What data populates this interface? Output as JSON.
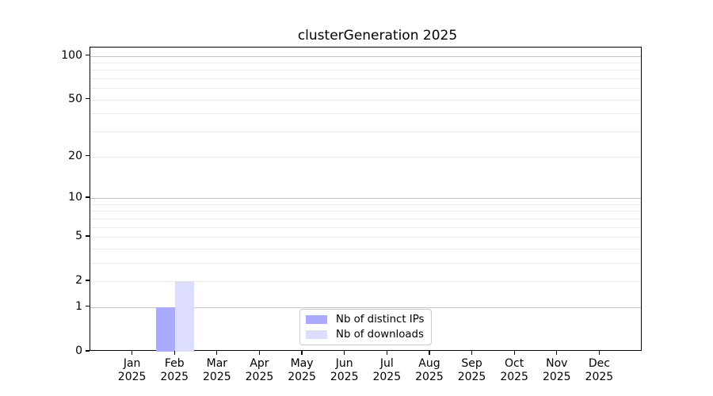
{
  "chart_data": {
    "type": "bar",
    "title": "clusterGeneration 2025",
    "x_year": "2025",
    "x_categories": [
      "Jan",
      "Feb",
      "Mar",
      "Apr",
      "May",
      "Jun",
      "Jul",
      "Aug",
      "Sep",
      "Oct",
      "Nov",
      "Dec"
    ],
    "series": [
      {
        "name": "Nb of distinct IPs",
        "color": "#aaaaff",
        "values": [
          0,
          1,
          0,
          0,
          0,
          0,
          0,
          0,
          0,
          0,
          0,
          0
        ]
      },
      {
        "name": "Nb of downloads",
        "color": "#ddddff",
        "values": [
          0,
          2,
          0,
          0,
          0,
          0,
          0,
          0,
          0,
          0,
          0,
          0
        ]
      }
    ],
    "y_axis": {
      "scale": "log10(1+x)",
      "range": [
        0,
        115
      ],
      "tick_values": [
        0,
        1,
        2,
        5,
        10,
        20,
        50,
        100
      ],
      "tick_labels": [
        "0",
        "1",
        "2",
        "5",
        "10",
        "20",
        "50",
        "100"
      ],
      "major_grid_values": [
        1,
        10,
        100
      ],
      "minor_grid_values": [
        2,
        3,
        4,
        5,
        6,
        7,
        8,
        9,
        20,
        30,
        40,
        50,
        60,
        70,
        80,
        90
      ]
    },
    "legend": {
      "position": "lower center",
      "entries": [
        "Nb of distinct IPs",
        "Nb of downloads"
      ]
    },
    "grid": true
  },
  "colors": {
    "background": "#ffffff",
    "spine": "#000000",
    "major_grid": "#c3c3c3",
    "minor_grid": "#ededed",
    "bar_distinct_ips": "#aaaaff",
    "bar_downloads": "#ddddff",
    "legend_border": "#cccccc"
  }
}
